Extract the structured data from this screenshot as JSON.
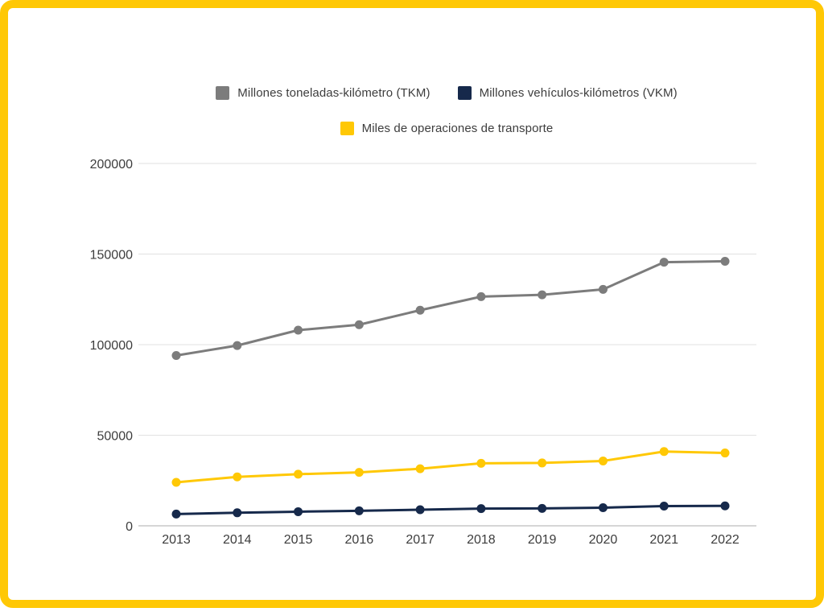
{
  "frame": {
    "border_color": "#FFC805",
    "background": "#FFFFFF"
  },
  "legend": {
    "rows": [
      [
        {
          "label": "Millones toneladas-kilómetro (TKM)",
          "color": "#7C7C7C"
        },
        {
          "label": "Millones vehículos-kilómetros (VKM)",
          "color": "#16294B"
        }
      ],
      [
        {
          "label": "Miles de operaciones de transporte",
          "color": "#FFC805"
        }
      ]
    ]
  },
  "chart_data": {
    "type": "line",
    "categories": [
      "2013",
      "2014",
      "2015",
      "2016",
      "2017",
      "2018",
      "2019",
      "2020",
      "2021",
      "2022"
    ],
    "series": [
      {
        "name": "Millones toneladas-kilómetro (TKM)",
        "color": "#7C7C7C",
        "values": [
          94000,
          99500,
          108000,
          111000,
          119000,
          126500,
          127500,
          130500,
          145500,
          146000
        ]
      },
      {
        "name": "Millones vehículos-kilómetros (VKM)",
        "color": "#16294B",
        "values": [
          6500,
          7200,
          7800,
          8300,
          8900,
          9500,
          9600,
          10000,
          10900,
          11000
        ]
      },
      {
        "name": "Miles de operaciones de transporte",
        "color": "#FFC805",
        "values": [
          24000,
          27000,
          28500,
          29500,
          31500,
          34500,
          34700,
          35800,
          41000,
          40200
        ]
      }
    ],
    "title": "",
    "xlabel": "",
    "ylabel": "",
    "ylim": [
      0,
      200000
    ],
    "y_ticks": [
      0,
      50000,
      100000,
      150000,
      200000
    ],
    "y_tick_labels": [
      "0",
      "50000",
      "100000",
      "150000",
      "200000"
    ],
    "grid": "horizontal",
    "legend_position": "top",
    "colors": {
      "gridline": "#E1E1E1",
      "axis_line": "#ADADAD",
      "tick_text": "#3D3D3D"
    }
  }
}
